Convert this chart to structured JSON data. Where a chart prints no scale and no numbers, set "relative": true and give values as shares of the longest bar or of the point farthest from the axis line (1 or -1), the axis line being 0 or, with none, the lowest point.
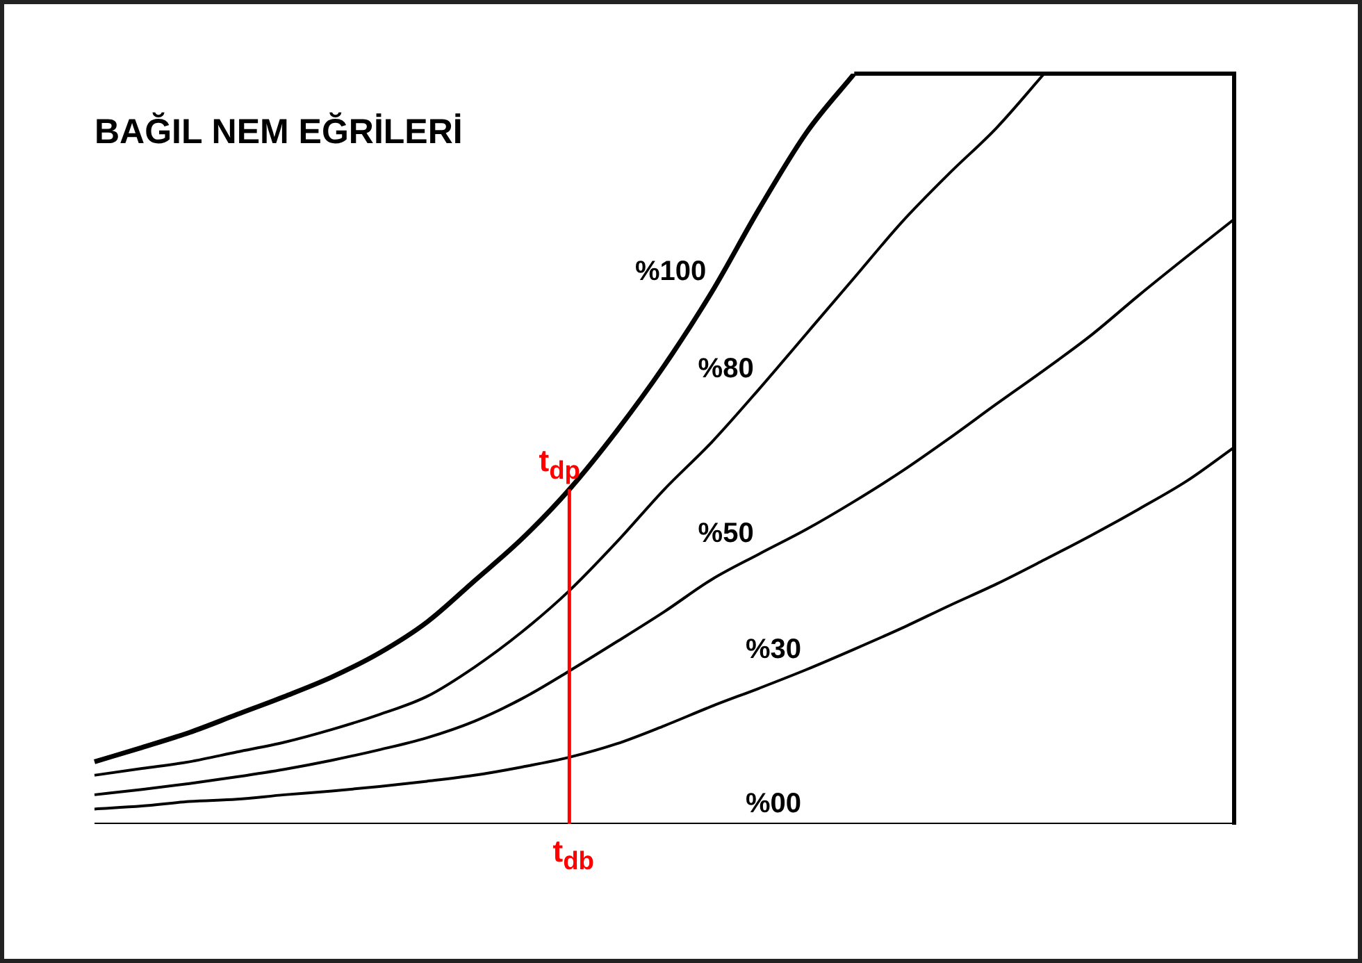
{
  "chart_data": {
    "type": "line",
    "title": "BAĞIL NEM EĞRİLERİ",
    "relative": true,
    "legend": false,
    "grid": false,
    "tick_labels": false,
    "marker": "none",
    "line_style": "solid",
    "categories": [
      null,
      null,
      null,
      null,
      null,
      null,
      null,
      null,
      null,
      null,
      null,
      null,
      null,
      null,
      null,
      null,
      null,
      null,
      null,
      null,
      null,
      null,
      null,
      null,
      null
    ],
    "series": [
      {
        "name": "%100",
        "color": "#000000",
        "values": [
          0.083,
          0.102,
          0.122,
          0.146,
          0.17,
          0.196,
          0.228,
          0.269,
          0.324,
          0.38,
          0.446,
          0.524,
          0.611,
          0.709,
          0.82,
          0.922,
          1,
          null,
          null,
          null,
          null,
          null,
          null,
          null,
          null
        ]
      },
      {
        "name": "%80",
        "color": "#000000",
        "values": [
          0.065,
          0.074,
          0.083,
          0.096,
          0.109,
          0.126,
          0.146,
          0.17,
          0.209,
          0.256,
          0.311,
          0.376,
          0.446,
          0.509,
          0.58,
          0.654,
          0.728,
          0.802,
          0.867,
          0.928,
          1,
          null,
          null,
          null,
          null
        ]
      },
      {
        "name": "%50",
        "color": "#000000",
        "values": [
          0.039,
          0.046,
          0.054,
          0.063,
          0.073,
          0.085,
          0.099,
          0.115,
          0.137,
          0.167,
          0.204,
          0.243,
          0.283,
          0.326,
          0.36,
          0.393,
          0.43,
          0.47,
          0.514,
          0.56,
          0.605,
          0.652,
          0.705,
          0.756,
          0.806
        ]
      },
      {
        "name": "%30",
        "color": "#000000",
        "values": [
          0.02,
          0.024,
          0.03,
          0.033,
          0.039,
          0.044,
          0.05,
          0.057,
          0.065,
          0.076,
          0.089,
          0.107,
          0.131,
          0.157,
          0.181,
          0.206,
          0.233,
          0.261,
          0.291,
          0.32,
          0.352,
          0.385,
          0.42,
          0.457,
          0.502
        ]
      },
      {
        "name": "%00",
        "color": "#000000",
        "values": [
          0,
          0,
          0,
          0,
          0,
          0,
          0,
          0,
          0,
          0,
          0,
          0,
          0,
          0,
          0,
          0,
          0,
          0,
          0,
          0,
          0,
          0,
          0,
          0,
          0
        ]
      }
    ],
    "ref_lines": [
      {
        "axis": "y",
        "value": 1,
        "color": "#000000"
      }
    ],
    "annotations": [
      "t$_{db}$",
      "t$_{dp}$"
    ]
  }
}
